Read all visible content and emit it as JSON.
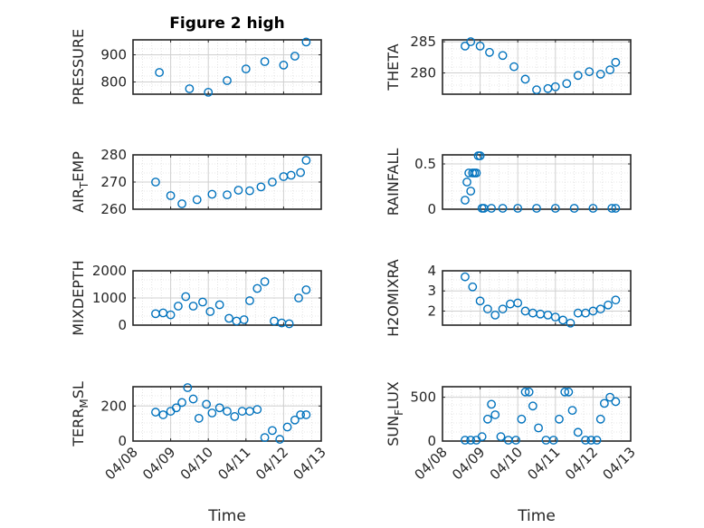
{
  "figure_title": "Figure 2 high",
  "colors": {
    "marker": "#0072BD",
    "axis": "#262626",
    "grid": "#d0d0d0"
  },
  "time_axis": {
    "xlim": [
      0,
      5
    ],
    "tick_values": [
      0,
      1,
      2,
      3,
      4,
      5
    ],
    "tick_labels": [
      "04/08",
      "04/09",
      "04/10",
      "04/11",
      "04/12",
      "04/13"
    ],
    "xlabel": "Time"
  },
  "chart_data": [
    {
      "type": "scatter",
      "id": "pressure",
      "ylabel": "PRESSURE",
      "title": "Figure 2 high",
      "ylim": [
        755,
        955
      ],
      "yticks": [
        800,
        900
      ],
      "ytick_labels": [
        "800",
        "900"
      ],
      "x": [
        0.7,
        1.5,
        2.0,
        2.5,
        3.0,
        3.5,
        4.0,
        4.3,
        4.6
      ],
      "y": [
        835,
        775,
        762,
        805,
        848,
        875,
        862,
        895,
        947
      ]
    },
    {
      "type": "scatter",
      "id": "theta",
      "ylabel": "THETA",
      "ylim": [
        276.6,
        285.3
      ],
      "yticks": [
        280,
        285
      ],
      "ytick_labels": [
        "280",
        "285"
      ],
      "x": [
        0.6,
        0.75,
        1.0,
        1.25,
        1.6,
        1.9,
        2.2,
        2.5,
        2.8,
        3.0,
        3.3,
        3.6,
        3.9,
        4.2,
        4.45,
        4.6
      ],
      "y": [
        284.3,
        285.0,
        284.3,
        283.3,
        282.8,
        281.0,
        279.0,
        277.3,
        277.5,
        277.8,
        278.3,
        279.6,
        280.2,
        279.8,
        280.5,
        281.7
      ]
    },
    {
      "type": "scatter",
      "id": "air-temp",
      "ylabel": "AIR_TEMP",
      "ylabel_main": "AIR",
      "ylabel_sub": "T",
      "ylabel_rest": "EMP",
      "ylim": [
        260,
        280
      ],
      "yticks": [
        260,
        270,
        280
      ],
      "ytick_labels": [
        "260",
        "270",
        "280"
      ],
      "x": [
        0.6,
        1.0,
        1.3,
        1.7,
        2.1,
        2.5,
        2.8,
        3.1,
        3.4,
        3.7,
        4.0,
        4.2,
        4.45,
        4.6
      ],
      "y": [
        270,
        265,
        262,
        263.5,
        265.5,
        265.3,
        267,
        266.8,
        268.2,
        270,
        272,
        272.5,
        273.5,
        278
      ]
    },
    {
      "type": "scatter",
      "id": "rainfall",
      "ylabel": "RAINFALL",
      "ylim": [
        0,
        0.6
      ],
      "yticks": [
        0,
        0.5
      ],
      "ytick_labels": [
        "0",
        "0.5"
      ],
      "x": [
        0.6,
        0.65,
        0.7,
        0.75,
        0.8,
        0.85,
        0.9,
        0.95,
        1.0,
        1.05,
        1.1,
        1.3,
        1.6,
        2.0,
        2.5,
        3.0,
        3.5,
        4.0,
        4.5,
        4.6
      ],
      "y": [
        0.1,
        0.3,
        0.4,
        0.2,
        0.4,
        0.4,
        0.4,
        0.6,
        0.6,
        0.0,
        0.0,
        0.0,
        0.0,
        0.0,
        0.0,
        0.0,
        0.0,
        0.0,
        0.0,
        0.0
      ]
    },
    {
      "type": "scatter",
      "id": "mixdepth",
      "ylabel": "MIXDEPTH",
      "ylim": [
        0,
        2000
      ],
      "yticks": [
        0,
        1000,
        2000
      ],
      "ytick_labels": [
        "0",
        "1000",
        "2000"
      ],
      "x": [
        0.6,
        0.8,
        1.0,
        1.2,
        1.4,
        1.6,
        1.85,
        2.05,
        2.3,
        2.55,
        2.75,
        2.95,
        3.1,
        3.3,
        3.5,
        3.75,
        3.95,
        4.15,
        4.4,
        4.6
      ],
      "y": [
        420,
        450,
        380,
        700,
        1050,
        700,
        850,
        500,
        750,
        250,
        150,
        200,
        900,
        1350,
        1600,
        150,
        80,
        50,
        1000,
        1300
      ]
    },
    {
      "type": "scatter",
      "id": "h2omixra",
      "ylabel": "H2OMIXRA",
      "ylim": [
        1.3,
        4.0
      ],
      "yticks": [
        2,
        3,
        4
      ],
      "ytick_labels": [
        "2",
        "3",
        "4"
      ],
      "x": [
        0.6,
        0.8,
        1.0,
        1.2,
        1.4,
        1.6,
        1.8,
        2.0,
        2.2,
        2.4,
        2.6,
        2.8,
        3.0,
        3.2,
        3.4,
        3.6,
        3.8,
        4.0,
        4.2,
        4.4,
        4.6
      ],
      "y": [
        3.7,
        3.2,
        2.5,
        2.1,
        1.8,
        2.1,
        2.35,
        2.4,
        2.0,
        1.9,
        1.85,
        1.8,
        1.7,
        1.55,
        1.4,
        1.9,
        1.9,
        2.0,
        2.1,
        2.3,
        2.55
      ]
    },
    {
      "type": "scatter",
      "id": "terr-msl",
      "ylabel": "TERR_MSL",
      "ylabel_main": "TERR",
      "ylabel_sub": "M",
      "ylabel_rest": "SL",
      "ylim": [
        0,
        310
      ],
      "yticks": [
        0,
        200
      ],
      "ytick_labels": [
        "0",
        "200"
      ],
      "x": [
        0.6,
        0.8,
        1.0,
        1.15,
        1.3,
        1.45,
        1.6,
        1.75,
        1.95,
        2.1,
        2.3,
        2.5,
        2.7,
        2.9,
        3.1,
        3.3,
        3.5,
        3.7,
        3.9,
        4.1,
        4.3,
        4.45,
        4.6
      ],
      "y": [
        165,
        150,
        170,
        190,
        220,
        310,
        240,
        130,
        210,
        160,
        190,
        170,
        140,
        170,
        170,
        180,
        20,
        60,
        10,
        80,
        120,
        150,
        150
      ]
    },
    {
      "type": "scatter",
      "id": "sun-flux",
      "ylabel": "SUN_FLUX",
      "ylabel_main": "SUN",
      "ylabel_sub": "F",
      "ylabel_rest": "LUX",
      "ylim": [
        0,
        620
      ],
      "yticks": [
        0,
        500
      ],
      "ytick_labels": [
        "0",
        "500"
      ],
      "x": [
        0.6,
        0.75,
        0.9,
        1.05,
        1.2,
        1.3,
        1.4,
        1.55,
        1.75,
        1.95,
        2.1,
        2.2,
        2.3,
        2.4,
        2.55,
        2.75,
        2.95,
        3.1,
        3.25,
        3.35,
        3.45,
        3.6,
        3.8,
        3.95,
        4.1,
        4.2,
        4.3,
        4.45,
        4.6
      ],
      "y": [
        0,
        0,
        0,
        50,
        250,
        420,
        300,
        50,
        0,
        0,
        250,
        560,
        560,
        400,
        150,
        0,
        0,
        250,
        560,
        560,
        350,
        100,
        0,
        0,
        0,
        250,
        430,
        500,
        450
      ]
    }
  ]
}
